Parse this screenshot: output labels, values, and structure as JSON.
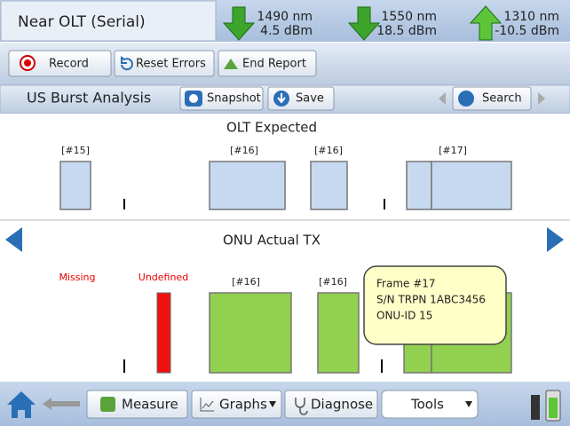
{
  "header": {
    "title": "Near OLT (Serial)",
    "wavelengths": [
      {
        "wavelength": "1490 nm",
        "power": "4.5 dBm"
      },
      {
        "wavelength": "1550 nm",
        "power": "18.5 dBm"
      },
      {
        "wavelength": "1310 nm",
        "power": "-10.5 dBm"
      }
    ]
  },
  "toolbar": {
    "buttons": [
      "Record",
      "Reset Errors",
      "End Report"
    ]
  },
  "analysis_bar": {
    "title": "US Burst Analysis",
    "buttons": [
      "Snapshot",
      "Save",
      "Search"
    ]
  },
  "olt_expected": {
    "title": "OLT Expected",
    "bursts": [
      "[#15]",
      "[#16]",
      "[#16]",
      "[#17]"
    ]
  },
  "onu_actual": {
    "title": "ONU Actual TX",
    "labels": [
      "Missing",
      "Undefined"
    ],
    "bursts": [
      "[#16]",
      "[#16]"
    ]
  },
  "tooltip": {
    "lines": [
      "Frame #17",
      "S/N TRPN 1ABC3456",
      "ONU-ID 15"
    ]
  },
  "bottom_nav": {
    "buttons": [
      "Measure",
      "Graphs",
      "Diagnose",
      "Tools"
    ]
  }
}
